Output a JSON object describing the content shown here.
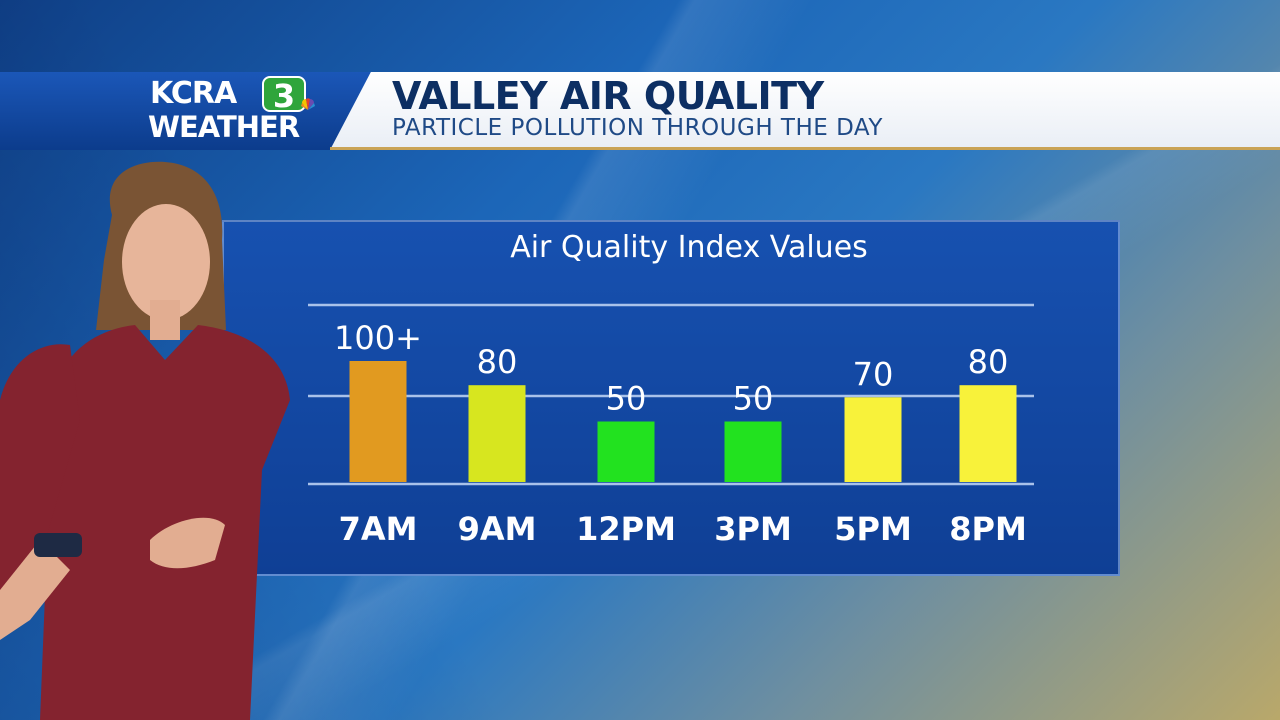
{
  "broadcast": {
    "logo_station": "KCRA",
    "logo_channel": "3",
    "logo_weather": "WEATHER",
    "title": "VALLEY AIR QUALITY",
    "subtitle": "PARTICLE POLLUTION THROUGH THE DAY"
  },
  "colors": {
    "orange": "#e19a20",
    "yellow_green": "#d7e61f",
    "green": "#22e21f",
    "yellow": "#f8f23a"
  },
  "chart_data": {
    "type": "bar",
    "title": "Air Quality Index Values",
    "categories": [
      "7AM",
      "9AM",
      "12PM",
      "3PM",
      "5PM",
      "8PM"
    ],
    "values": [
      100,
      80,
      50,
      50,
      70,
      80
    ],
    "value_labels": [
      "100+",
      "80",
      "50",
      "50",
      "70",
      "80"
    ],
    "bar_colors": [
      "#e19a20",
      "#d7e61f",
      "#22e21f",
      "#22e21f",
      "#f8f23a",
      "#f8f23a"
    ],
    "grid": true,
    "legend": "none"
  }
}
